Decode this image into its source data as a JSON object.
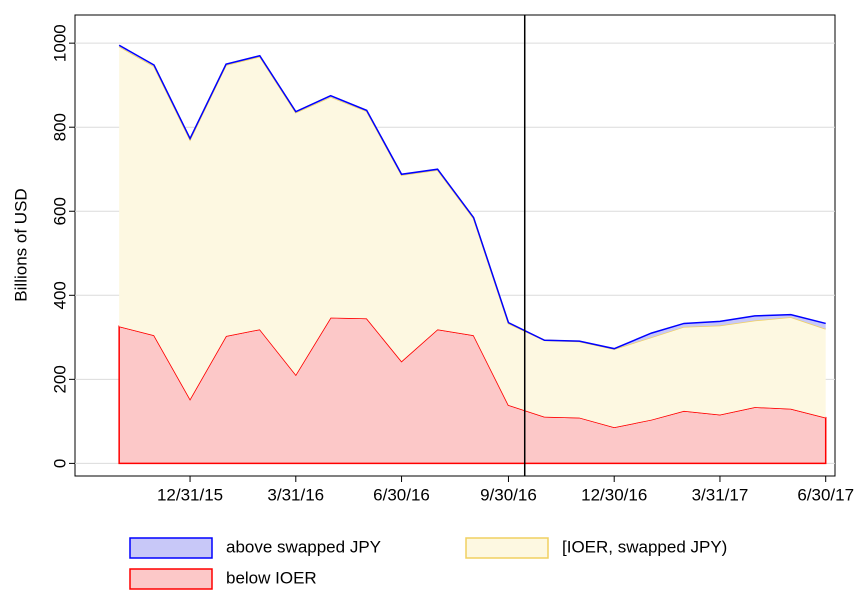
{
  "chart_data": {
    "type": "stacked-area",
    "y_label": "Billions of USD",
    "x": [
      "10/31/15",
      "11/30/15",
      "12/31/15",
      "1/31/16",
      "2/29/16",
      "3/31/16",
      "4/30/16",
      "5/31/16",
      "6/30/16",
      "7/31/16",
      "8/31/16",
      "9/30/16",
      "10/31/16",
      "11/30/16",
      "12/30/16",
      "1/31/17",
      "2/28/17",
      "3/31/17",
      "4/30/17",
      "5/31/17",
      "6/30/17"
    ],
    "series": [
      {
        "name": "below IOER",
        "color": "#ff0000",
        "fill": "#fcc8c8",
        "values": [
          326,
          305,
          153,
          303,
          319,
          211,
          347,
          345,
          243,
          319,
          305,
          139,
          111,
          109,
          86,
          104,
          125,
          116,
          134,
          130,
          109
        ]
      },
      {
        "name": "[IOER, swapped JPY)",
        "color": "#f0d060",
        "fill": "#fdf8e1",
        "values": [
          666,
          640,
          617,
          645,
          649,
          624,
          525,
          493,
          443,
          379,
          278,
          194,
          182,
          181,
          186,
          196,
          200,
          212,
          206,
          218,
          211
        ]
      },
      {
        "name": "above swapped JPY",
        "color": "#0000ff",
        "fill": "#c8c8f8",
        "values": [
          3,
          3,
          3,
          2,
          2,
          2,
          3,
          2,
          2,
          2,
          2,
          2,
          0,
          1,
          1,
          10,
          8,
          10,
          11,
          6,
          13
        ]
      }
    ],
    "xlim": [
      "9/23/15",
      "7/8/17"
    ],
    "xticks": [
      "12/31/15",
      "3/31/16",
      "6/30/16",
      "9/30/16",
      "12/30/16",
      "3/31/17",
      "6/30/17"
    ],
    "ylim": [
      -30,
      1067
    ],
    "yticks": [
      0,
      200,
      400,
      600,
      800,
      1000
    ],
    "vline": "10/14/16",
    "grid": true
  }
}
